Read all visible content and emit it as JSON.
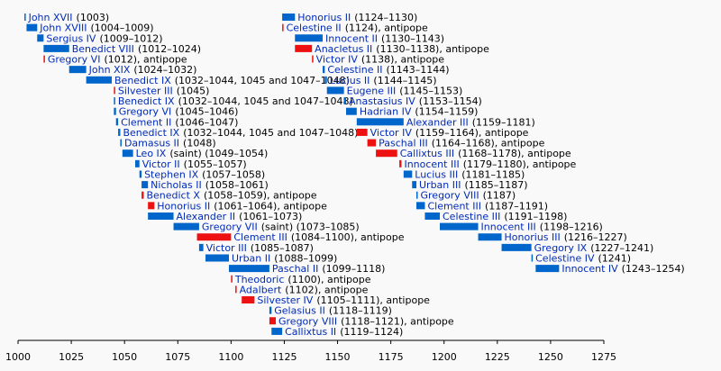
{
  "chart_data": {
    "type": "timeline",
    "xlim": [
      1000,
      1275
    ],
    "xticks": [
      1000,
      1025,
      1050,
      1075,
      1100,
      1125,
      1150,
      1175,
      1200,
      1225,
      1250,
      1275
    ],
    "items": [
      {
        "name": "John XVII",
        "detail": "(1003)",
        "start": 1003,
        "end": 1003,
        "color": "#0066cc"
      },
      {
        "name": "John XVIII",
        "detail": "(1004–1009)",
        "start": 1004,
        "end": 1009,
        "color": "#0066cc"
      },
      {
        "name": "Sergius IV",
        "detail": "(1009–1012)",
        "start": 1009,
        "end": 1012,
        "color": "#0066cc"
      },
      {
        "name": "Benedict VIII",
        "detail": "(1012–1024)",
        "start": 1012,
        "end": 1024,
        "color": "#0066cc"
      },
      {
        "name": "Gregory VI",
        "detail": "(1012), antipope",
        "start": 1012,
        "end": 1012,
        "color": "#ee1111"
      },
      {
        "name": "John XIX",
        "detail": "(1024–1032)",
        "start": 1024,
        "end": 1032,
        "color": "#0066cc"
      },
      {
        "name": "Benedict IX",
        "detail": "(1032–1044, 1045 and 1047–1048)",
        "start": 1032,
        "end": 1044,
        "color": "#0066cc"
      },
      {
        "name": "Silvester III",
        "detail": "(1045)",
        "start": 1045,
        "end": 1045,
        "color": "#ee1111"
      },
      {
        "name": "Benedict IX",
        "detail": "(1032–1044, 1045 and 1047–1048)",
        "start": 1045,
        "end": 1045,
        "color": "#0066cc"
      },
      {
        "name": "Gregory VI",
        "detail": "(1045–1046)",
        "start": 1045,
        "end": 1046,
        "color": "#0066cc"
      },
      {
        "name": "Clement II",
        "detail": "(1046–1047)",
        "start": 1046,
        "end": 1047,
        "color": "#0066cc"
      },
      {
        "name": "Benedict IX",
        "detail": "(1032–1044, 1045 and 1047–1048)",
        "start": 1047,
        "end": 1048,
        "color": "#0066cc"
      },
      {
        "name": "Damasus II",
        "detail": "(1048)",
        "start": 1048,
        "end": 1048,
        "color": "#0066cc"
      },
      {
        "name": "Leo IX",
        "detail": "(saint) (1049–1054)",
        "start": 1049,
        "end": 1054,
        "color": "#0066cc"
      },
      {
        "name": "Victor II",
        "detail": "(1055–1057)",
        "start": 1055,
        "end": 1057,
        "color": "#0066cc"
      },
      {
        "name": "Stephen IX",
        "detail": "(1057–1058)",
        "start": 1057,
        "end": 1058,
        "color": "#0066cc"
      },
      {
        "name": "Nicholas II",
        "detail": "(1058–1061)",
        "start": 1058,
        "end": 1061,
        "color": "#0066cc"
      },
      {
        "name": "Benedict X",
        "detail": "(1058–1059), antipope",
        "start": 1058,
        "end": 1059,
        "color": "#ee1111"
      },
      {
        "name": "Honorius II",
        "detail": "(1061–1064), antipope",
        "start": 1061,
        "end": 1064,
        "color": "#ee1111"
      },
      {
        "name": "Alexander II",
        "detail": "(1061–1073)",
        "start": 1061,
        "end": 1073,
        "color": "#0066cc"
      },
      {
        "name": "Gregory VII",
        "detail": "(saint) (1073–1085)",
        "start": 1073,
        "end": 1085,
        "color": "#0066cc"
      },
      {
        "name": "Clement III",
        "detail": "(1084–1100), antipope",
        "start": 1084,
        "end": 1100,
        "color": "#ee1111"
      },
      {
        "name": "Victor III",
        "detail": "(1085–1087)",
        "start": 1085,
        "end": 1087,
        "color": "#0066cc"
      },
      {
        "name": "Urban II",
        "detail": "(1088–1099)",
        "start": 1088,
        "end": 1099,
        "color": "#0066cc"
      },
      {
        "name": "Paschal II",
        "detail": "(1099–1118)",
        "start": 1099,
        "end": 1118,
        "color": "#0066cc"
      },
      {
        "name": "Theodoric",
        "detail": "(1100), antipope",
        "start": 1100,
        "end": 1100,
        "color": "#ee1111"
      },
      {
        "name": "Adalbert",
        "detail": "(1102), antipope",
        "start": 1102,
        "end": 1102,
        "color": "#ee1111"
      },
      {
        "name": "Silvester IV",
        "detail": "(1105–1111), antipope",
        "start": 1105,
        "end": 1111,
        "color": "#ee1111"
      },
      {
        "name": "Gelasius II",
        "detail": "(1118–1119)",
        "start": 1118,
        "end": 1119,
        "color": "#0066cc"
      },
      {
        "name": "Gregory VIII",
        "detail": "(1118–1121), antipope",
        "start": 1118,
        "end": 1121,
        "color": "#ee1111"
      },
      {
        "name": "Callixtus II",
        "detail": "(1119–1124)",
        "start": 1119,
        "end": 1124,
        "color": "#0066cc"
      },
      {
        "name": "Honorius II",
        "detail": "(1124–1130)",
        "start": 1124,
        "end": 1130,
        "color": "#0066cc"
      },
      {
        "name": "Celestine II",
        "detail": "(1124), antipope",
        "start": 1124,
        "end": 1124,
        "color": "#ee1111"
      },
      {
        "name": "Innocent II",
        "detail": "(1130–1143)",
        "start": 1130,
        "end": 1143,
        "color": "#0066cc"
      },
      {
        "name": "Anacletus II",
        "detail": "(1130–1138), antipope",
        "start": 1130,
        "end": 1138,
        "color": "#ee1111"
      },
      {
        "name": "Victor IV",
        "detail": "(1138), antipope",
        "start": 1138,
        "end": 1138,
        "color": "#ee1111"
      },
      {
        "name": "Celestine II",
        "detail": "(1143–1144)",
        "start": 1143,
        "end": 1144,
        "color": "#0066cc"
      },
      {
        "name": "Lucius II",
        "detail": "(1144–1145)",
        "start": 1144,
        "end": 1145,
        "color": "#0066cc"
      },
      {
        "name": "Eugene III",
        "detail": "(1145–1153)",
        "start": 1145,
        "end": 1153,
        "color": "#0066cc"
      },
      {
        "name": "Anastasius IV",
        "detail": "(1153–1154)",
        "start": 1153,
        "end": 1154,
        "color": "#0066cc"
      },
      {
        "name": "Hadrian IV",
        "detail": "(1154–1159)",
        "start": 1154,
        "end": 1159,
        "color": "#0066cc"
      },
      {
        "name": "Alexander III",
        "detail": "(1159–1181)",
        "start": 1159,
        "end": 1181,
        "color": "#0066cc"
      },
      {
        "name": "Victor IV",
        "detail": "(1159–1164), antipope",
        "start": 1159,
        "end": 1164,
        "color": "#ee1111"
      },
      {
        "name": "Paschal III",
        "detail": "(1164–1168), antipope",
        "start": 1164,
        "end": 1168,
        "color": "#ee1111"
      },
      {
        "name": "Callixtus III",
        "detail": "(1168–1178), antipope",
        "start": 1168,
        "end": 1178,
        "color": "#ee1111"
      },
      {
        "name": "Innocent III",
        "detail": "(1179–1180), antipope",
        "start": 1179,
        "end": 1180,
        "color": "#ee1111"
      },
      {
        "name": "Lucius III",
        "detail": "(1181–1185)",
        "start": 1181,
        "end": 1185,
        "color": "#0066cc"
      },
      {
        "name": "Urban III",
        "detail": "(1185–1187)",
        "start": 1185,
        "end": 1187,
        "color": "#0066cc"
      },
      {
        "name": "Gregory VIII",
        "detail": "(1187)",
        "start": 1187,
        "end": 1187,
        "color": "#0066cc"
      },
      {
        "name": "Clement III",
        "detail": "(1187–1191)",
        "start": 1187,
        "end": 1191,
        "color": "#0066cc"
      },
      {
        "name": "Celestine III",
        "detail": "(1191–1198)",
        "start": 1191,
        "end": 1198,
        "color": "#0066cc"
      },
      {
        "name": "Innocent III",
        "detail": "(1198–1216)",
        "start": 1198,
        "end": 1216,
        "color": "#0066cc"
      },
      {
        "name": "Honorius III",
        "detail": "(1216–1227)",
        "start": 1216,
        "end": 1227,
        "color": "#0066cc"
      },
      {
        "name": "Gregory IX",
        "detail": "(1227–1241)",
        "start": 1227,
        "end": 1241,
        "color": "#0066cc"
      },
      {
        "name": "Celestine IV",
        "detail": "(1241)",
        "start": 1241,
        "end": 1241,
        "color": "#0066cc"
      },
      {
        "name": "Innocent IV",
        "detail": "(1243–1254)",
        "start": 1243,
        "end": 1254,
        "color": "#0066cc"
      }
    ]
  }
}
